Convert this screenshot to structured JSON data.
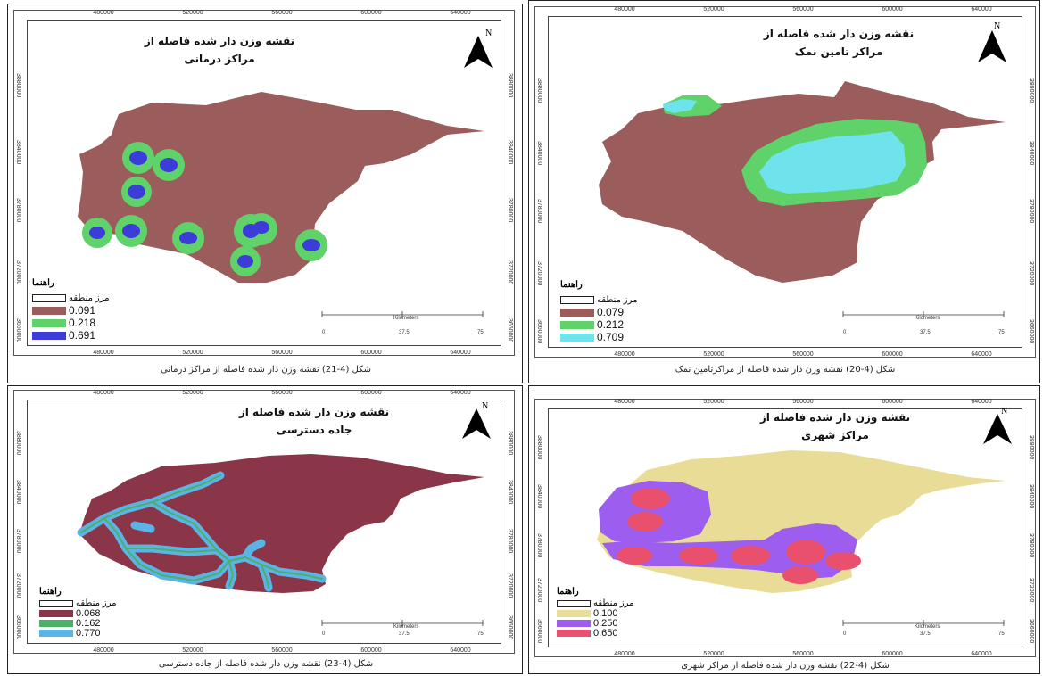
{
  "maps": [
    {
      "id": "medical",
      "title_line1": "نقشه وزن دار شده فاصله از",
      "title_line2": "مراکز درمانی",
      "legend_title": "راهنما",
      "boundary_label": "مرز منطقه",
      "legend": [
        {
          "value": "0.091",
          "color": "#9b5c5c"
        },
        {
          "value": "0.218",
          "color": "#5fd36a"
        },
        {
          "value": "0.691",
          "color": "#3c3cd8"
        }
      ],
      "caption": "شکل (4-21) نقشه وزن دار شده فاصله از مراکز درمانی"
    },
    {
      "id": "salt",
      "title_line1": "نقشه وزن دار شده فاصله از",
      "title_line2": "مراکز تامین نمک",
      "legend_title": "راهنما",
      "boundary_label": "مرز منطقه",
      "legend": [
        {
          "value": "0.079",
          "color": "#9b5c5c"
        },
        {
          "value": "0.212",
          "color": "#5fd36a"
        },
        {
          "value": "0.709",
          "color": "#6fe3ec"
        }
      ],
      "caption": "شکل (4-20) نقشه وزن دار شده فاصله از مراکزتامین نمک"
    },
    {
      "id": "road",
      "title_line1": "نقشه وزن دار شده فاصله از",
      "title_line2": "جاده دسترسی",
      "legend_title": "راهنما",
      "boundary_label": "مرز منطقه",
      "legend": [
        {
          "value": "0.068",
          "color": "#8a3548"
        },
        {
          "value": "0.162",
          "color": "#4fae6a"
        },
        {
          "value": "0.770",
          "color": "#5ab4e6"
        }
      ],
      "caption": "شکل (4-23) نقشه وزن دار شده فاصله از جاده دسترسی"
    },
    {
      "id": "urban",
      "title_line1": "نقشه وزن دار شده فاصله از",
      "title_line2": "مراکز شهری",
      "legend_title": "راهنما",
      "boundary_label": "مرز منطقه",
      "legend": [
        {
          "value": "0.100",
          "color": "#e8dc96"
        },
        {
          "value": "0.250",
          "color": "#9d5ef0"
        },
        {
          "value": "0.650",
          "color": "#e8506e"
        }
      ],
      "caption": "شکل (4-22) نقشه وزن دار شده فاصله از مراکز شهری"
    }
  ],
  "x_ticks": [
    "480000",
    "520000",
    "560000",
    "600000",
    "640000"
  ],
  "y_ticks": [
    "3880000",
    "3840000",
    "3780000",
    "3720000",
    "3660000"
  ],
  "north_label": "N",
  "scale": {
    "unit": "Kilometers",
    "labels": [
      "0",
      "37.5",
      "75"
    ]
  }
}
